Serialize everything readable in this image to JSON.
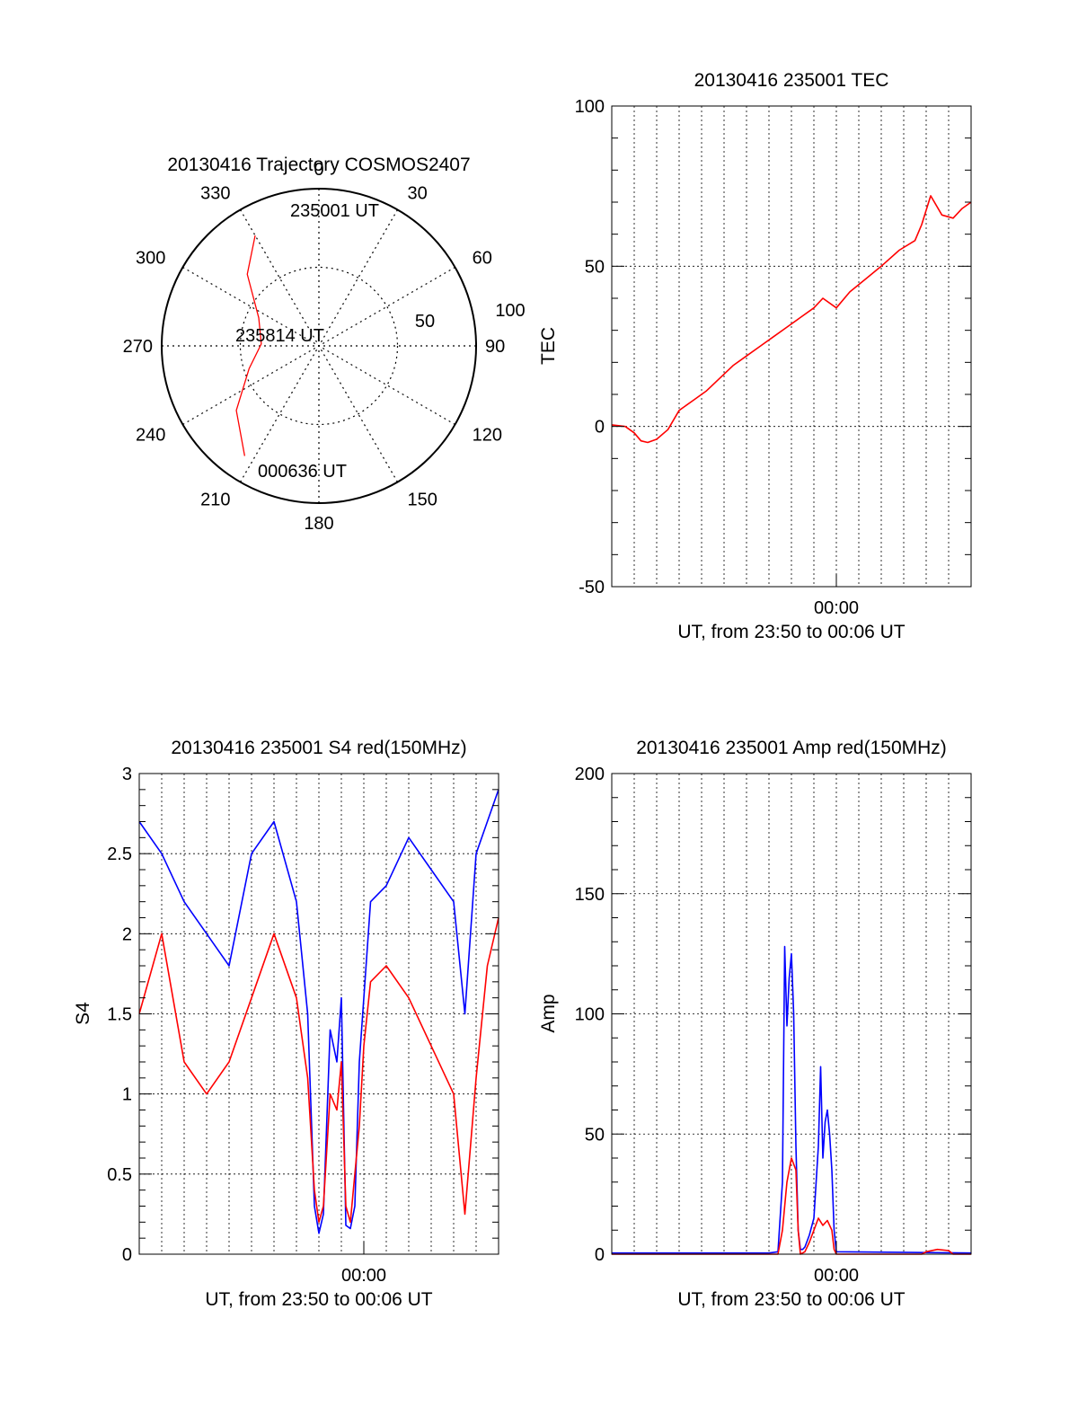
{
  "colors": {
    "red": "#ff0000",
    "blue": "#0000ff",
    "axis": "#000000",
    "grid": "#000000"
  },
  "chart_data": [
    {
      "id": "trajectory",
      "type": "polar",
      "title": "20130416 Trajectory COSMOS2407",
      "azimuth_labels": [
        "0",
        "30",
        "60",
        "90",
        "120",
        "150",
        "180",
        "210",
        "240",
        "270",
        "300",
        "330"
      ],
      "radial_labels": [
        "50",
        "100"
      ],
      "radial_ticks": [
        50,
        100
      ],
      "grid": true,
      "track_color": "red",
      "track": [
        {
          "az": 330,
          "el": 17
        },
        {
          "az": 315,
          "el": 32
        },
        {
          "az": 295,
          "el": 52
        },
        {
          "az": 272,
          "el": 57
        },
        {
          "az": 252,
          "el": 48
        },
        {
          "az": 232,
          "el": 30
        },
        {
          "az": 214,
          "el": 14
        }
      ],
      "annotations": [
        {
          "text": "235001 UT",
          "az": 330,
          "el": 17
        },
        {
          "text": "235814 UT",
          "az": 272,
          "el": 57
        },
        {
          "text": "000636 UT",
          "az": 214,
          "el": 14
        }
      ]
    },
    {
      "id": "tec",
      "type": "line",
      "title": "20130416 235001 TEC",
      "ylabel": "TEC",
      "xlabel": "UT, from 23:50 to 00:06 UT",
      "xtick_labels": [
        {
          "x": 10,
          "label": "00:00"
        }
      ],
      "xlim": [
        0,
        16
      ],
      "ylim": [
        -50,
        100
      ],
      "yticks": [
        -50,
        0,
        50,
        100
      ],
      "grid": true,
      "series": [
        {
          "color": "red",
          "x": [
            0,
            0.6,
            1.0,
            1.3,
            1.6,
            2.0,
            2.5,
            3.0,
            3.6,
            4.2,
            4.8,
            5.4,
            6.0,
            6.6,
            7.2,
            7.8,
            8.4,
            9.0,
            9.4,
            10.0,
            10.6,
            11.3,
            12.0,
            12.8,
            13.5,
            13.8,
            14.2,
            14.7,
            15.2,
            15.6,
            16.0
          ],
          "y": [
            0.5,
            0,
            -2,
            -4.5,
            -5,
            -4,
            -1,
            5,
            8,
            11,
            15,
            19,
            22,
            25,
            28,
            31,
            34,
            37,
            40,
            37,
            42,
            46,
            50,
            55,
            58,
            63,
            72,
            66,
            65,
            68,
            70
          ]
        }
      ]
    },
    {
      "id": "s4",
      "type": "line",
      "title": "20130416 235001 S4 red(150MHz)",
      "ylabel": "S4",
      "xlabel": "UT, from 23:50 to 00:06 UT",
      "xtick_labels": [
        {
          "x": 10,
          "label": "00:00"
        }
      ],
      "xlim": [
        0,
        16
      ],
      "ylim": [
        0,
        3
      ],
      "yticks": [
        0,
        0.5,
        1,
        1.5,
        2,
        2.5,
        3
      ],
      "ytick_labels": [
        "0",
        "0.5",
        "1",
        "1.5",
        "2",
        "2.5",
        "3"
      ],
      "grid": true,
      "series": [
        {
          "color": "blue",
          "x": [
            0,
            1,
            2,
            3,
            4,
            5,
            6,
            7,
            7.5,
            7.8,
            8.0,
            8.2,
            8.5,
            8.8,
            9.0,
            9.2,
            9.4,
            9.6,
            9.8,
            10.0,
            10.3,
            11,
            12,
            13,
            14,
            14.5,
            15,
            15.5,
            16
          ],
          "y": [
            2.7,
            2.5,
            2.2,
            2.0,
            1.8,
            2.5,
            2.7,
            2.2,
            1.5,
            0.3,
            0.13,
            0.25,
            1.4,
            1.2,
            1.6,
            0.18,
            0.16,
            0.3,
            1.2,
            1.6,
            2.2,
            2.3,
            2.6,
            2.4,
            2.2,
            1.5,
            2.5,
            2.7,
            2.9
          ]
        },
        {
          "color": "red",
          "x": [
            0,
            1,
            2,
            3,
            4,
            5,
            6,
            7,
            7.5,
            7.8,
            8.0,
            8.2,
            8.5,
            8.8,
            9.0,
            9.2,
            9.4,
            9.6,
            9.8,
            10.0,
            10.3,
            11,
            12,
            13,
            14,
            14.5,
            15,
            15.5,
            16
          ],
          "y": [
            1.5,
            2.0,
            1.2,
            1.0,
            1.2,
            1.6,
            2.0,
            1.6,
            1.1,
            0.4,
            0.2,
            0.3,
            1.0,
            0.9,
            1.2,
            0.3,
            0.2,
            0.5,
            0.8,
            1.3,
            1.7,
            1.8,
            1.6,
            1.3,
            1.0,
            0.25,
            1.1,
            1.8,
            2.1
          ]
        }
      ]
    },
    {
      "id": "amp",
      "type": "line",
      "title": "20130416 235001 Amp red(150MHz)",
      "ylabel": "Amp",
      "xlabel": "UT, from 23:50 to 00:06 UT",
      "xtick_labels": [
        {
          "x": 10,
          "label": "00:00"
        }
      ],
      "xlim": [
        0,
        16
      ],
      "ylim": [
        0,
        200
      ],
      "yticks": [
        0,
        50,
        100,
        150,
        200
      ],
      "grid": true,
      "series": [
        {
          "color": "blue",
          "x": [
            0,
            7.0,
            7.4,
            7.6,
            7.7,
            7.8,
            7.9,
            8.0,
            8.1,
            8.2,
            8.3,
            8.4,
            8.5,
            8.6,
            8.8,
            9.0,
            9.2,
            9.3,
            9.4,
            9.5,
            9.6,
            9.7,
            9.8,
            9.9,
            10.0,
            16.0
          ],
          "y": [
            0.5,
            0.5,
            1,
            30,
            128,
            95,
            115,
            125,
            100,
            45,
            10,
            2,
            2,
            3,
            8,
            15,
            45,
            78,
            40,
            55,
            60,
            50,
            35,
            10,
            1,
            0.5
          ]
        },
        {
          "color": "red",
          "x": [
            0,
            7.4,
            7.6,
            7.8,
            8.0,
            8.2,
            8.3,
            8.4,
            8.6,
            8.8,
            9.0,
            9.2,
            9.4,
            9.6,
            9.8,
            9.9,
            10.0,
            13.8,
            14.0,
            14.5,
            15.0,
            15.2,
            16.0
          ],
          "y": [
            0,
            0,
            10,
            30,
            40,
            35,
            10,
            0,
            1,
            5,
            10,
            15,
            12,
            14,
            10,
            2,
            0,
            0,
            1,
            2,
            1.5,
            0,
            0
          ]
        }
      ]
    }
  ]
}
